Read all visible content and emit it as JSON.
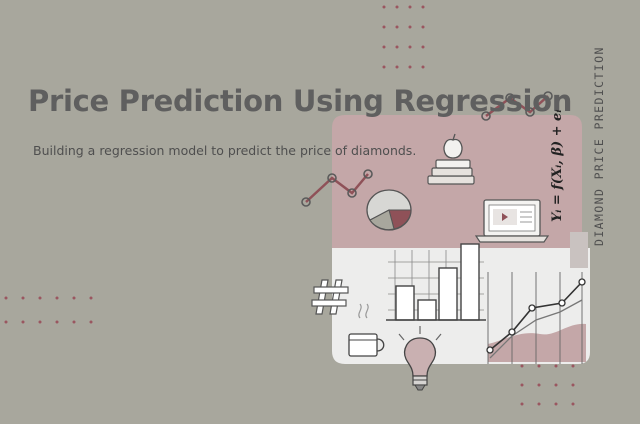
{
  "title": "Price Prediction Using Regression",
  "subtitle": "Building a regression model to predict the price of diamonds.",
  "side_label": "DIAMOND PRICE PREDICTION",
  "formula": "Yᵢ = f(Xᵢ, β) + eᵢ",
  "colors": {
    "background": "#a8a79d",
    "mauve": "#c4a7a8",
    "card": "#ededec",
    "accent": "#8f5158",
    "dot": "#9a5660",
    "text": "#5f5f5f"
  },
  "icons": [
    "trend-line-icon",
    "pie-chart-icon",
    "apple-books-icon",
    "laptop-video-icon",
    "hashtag-icon",
    "bar-chart-icon",
    "line-graph-icon",
    "coffee-mug-icon",
    "light-bulb-icon"
  ]
}
